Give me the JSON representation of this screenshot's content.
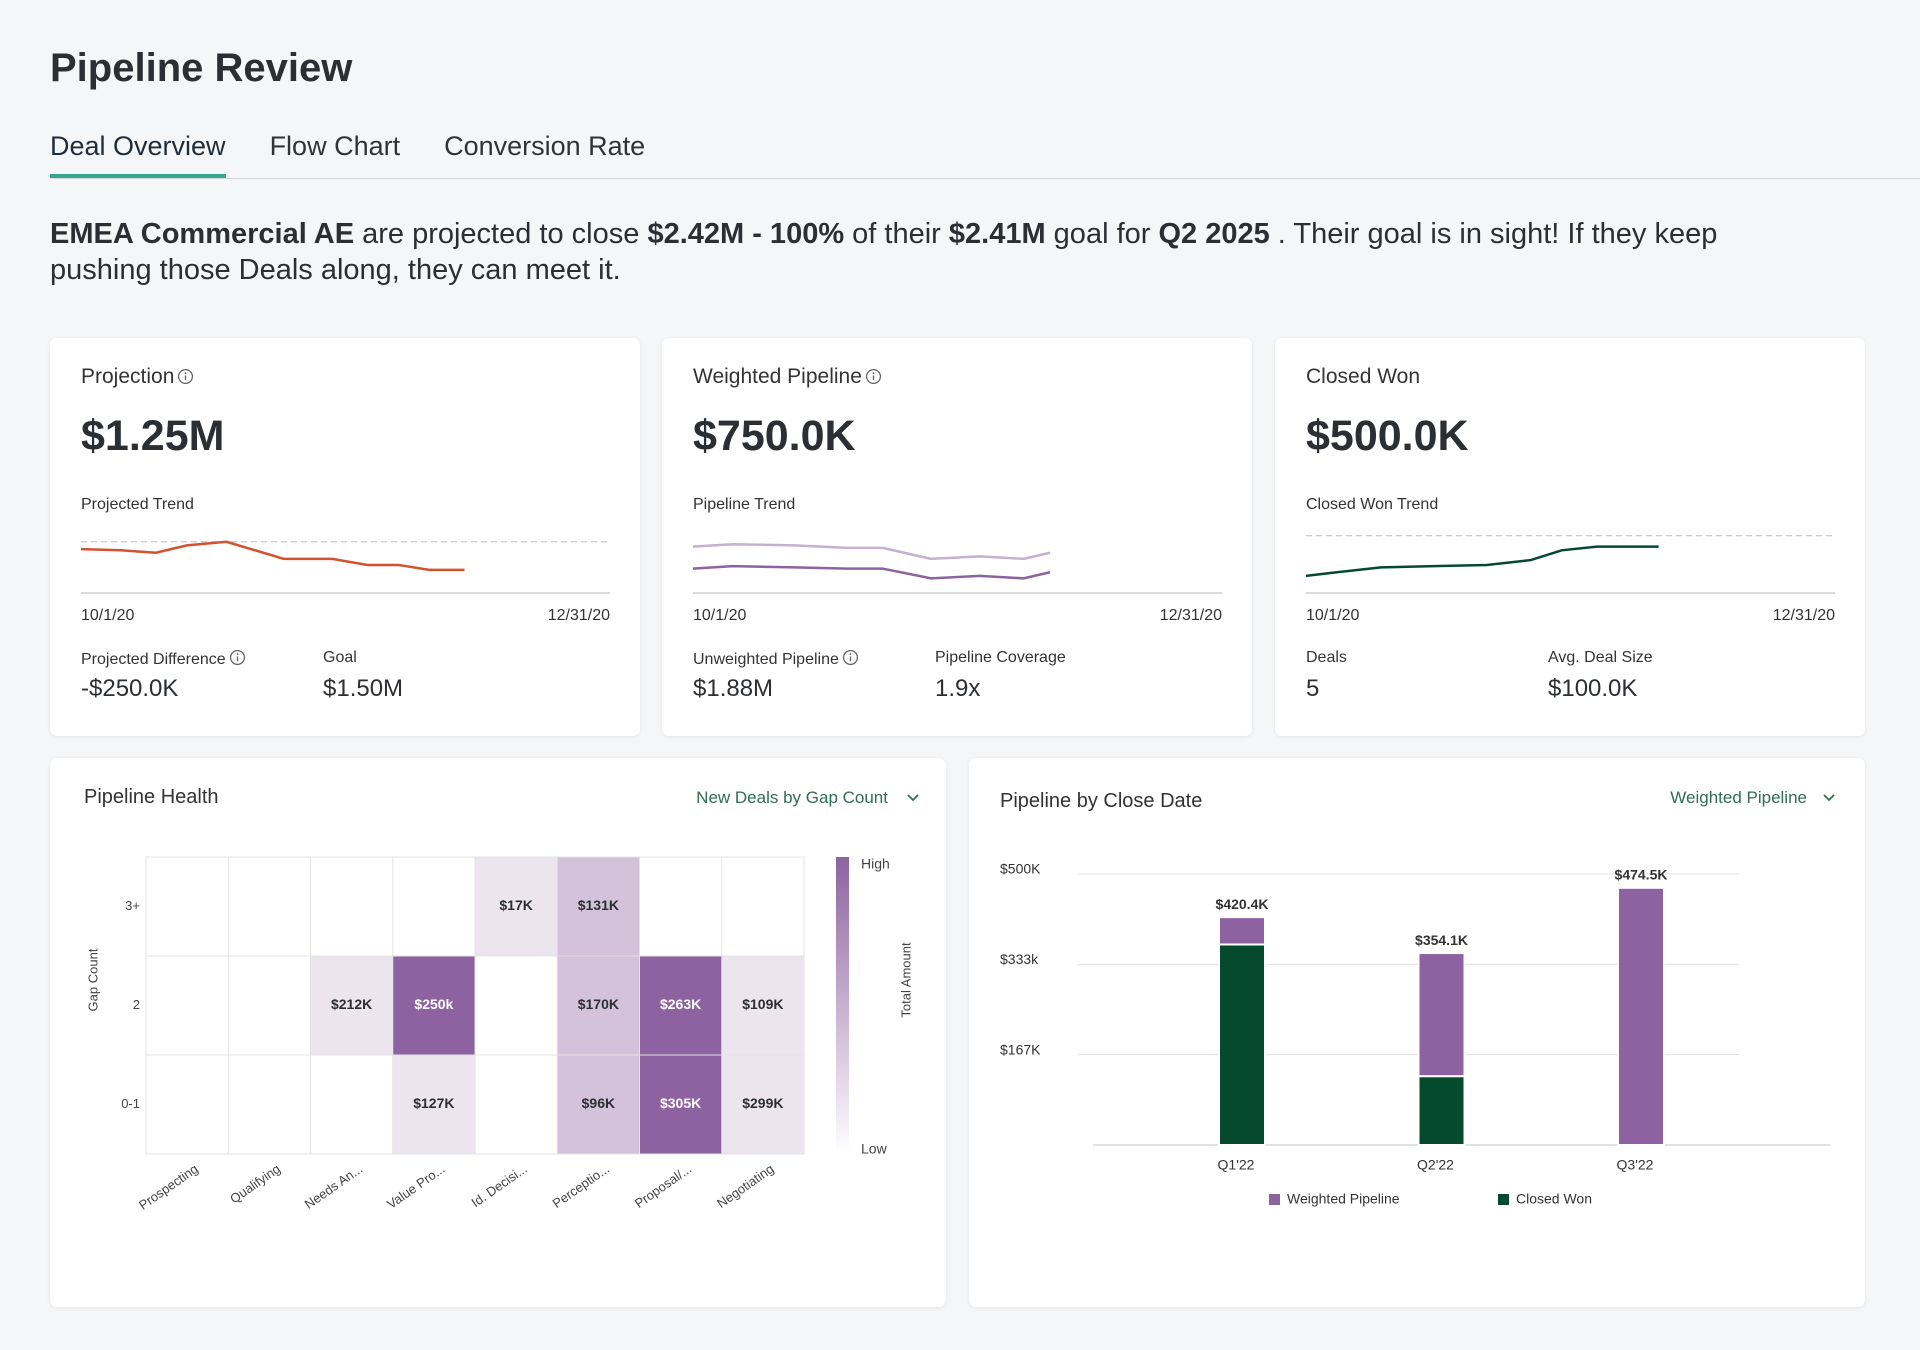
{
  "header": {
    "title": "Pipeline Review"
  },
  "tabs": {
    "items": [
      "Deal Overview",
      "Flow Chart",
      "Conversion Rate"
    ],
    "active": 0
  },
  "summary": [
    {
      "text": "EMEA Commercial AE",
      "bold": true
    },
    {
      "text": " are projected to close "
    },
    {
      "text": "$2.42M - 100%",
      "bold": true
    },
    {
      "text": " of their "
    },
    {
      "text": "$2.41M",
      "bold": true
    },
    {
      "text": " goal for "
    },
    {
      "text": "Q2 2025",
      "bold": true
    },
    {
      "text": " . Their goal is in sight! If they keep pushing those Deals along, they can meet it."
    }
  ],
  "cards": [
    {
      "title": "Projection",
      "info": true,
      "value": "$1.25M",
      "trend_title": "Projected Trend",
      "start_label": "10/1/20",
      "end_label": "12/31/20",
      "chart_data": {
        "type": "line",
        "xlim": [
          0,
          12
        ],
        "ylim": [
          0,
          50
        ],
        "goal": 42,
        "series": [
          {
            "color": "#d3522e",
            "x": [
              0,
              0.9,
              1.7,
              2.4,
              3.3,
              4.6,
              5.7,
              6.5,
              7.2,
              7.9,
              8.7
            ],
            "values": [
              36,
              35,
              33,
              39,
              42,
              28,
              28,
              23,
              23,
              19,
              19
            ]
          }
        ]
      },
      "metrics": [
        {
          "label": "Projected Difference",
          "info": true,
          "value": "-$250.0K"
        },
        {
          "label": "Goal",
          "value": "$1.50M"
        }
      ]
    },
    {
      "title": "Weighted Pipeline",
      "info": true,
      "value": "$750.0K",
      "trend_title": "Pipeline Trend",
      "start_label": "10/1/20",
      "end_label": "12/31/20",
      "chart_data": {
        "type": "line",
        "xlim": [
          0,
          12
        ],
        "ylim": [
          0,
          50
        ],
        "series": [
          {
            "color": "#c5b0cf",
            "x": [
              0,
              0.9,
              2.3,
              3.5,
              4.3,
              5.4,
              6.5,
              7.5,
              8.1
            ],
            "values": [
              38,
              40,
              39,
              37,
              37,
              28,
              30,
              28,
              33
            ]
          },
          {
            "color": "#8e62a0",
            "x": [
              0,
              0.9,
              2.3,
              3.5,
              4.3,
              5.4,
              6.5,
              7.5,
              8.1
            ],
            "values": [
              20,
              22,
              21,
              20,
              20,
              12,
              14,
              12,
              17
            ]
          }
        ]
      },
      "metrics": [
        {
          "label": "Unweighted Pipeline",
          "info": true,
          "value": "$1.88M"
        },
        {
          "label": "Pipeline Coverage",
          "value": "1.9x"
        }
      ]
    },
    {
      "title": "Closed Won",
      "value": "$500.0K",
      "trend_title": "Closed Won Trend",
      "start_label": "10/1/20",
      "end_label": "12/31/20",
      "chart_data": {
        "type": "line",
        "xlim": [
          0,
          12
        ],
        "ylim": [
          0,
          50
        ],
        "goal": 47,
        "series": [
          {
            "color": "#054a2e",
            "x": [
              0,
              0.7,
              1.7,
              2.9,
              4.1,
              5.1,
              5.8,
              6.6,
              8.0
            ],
            "values": [
              14,
              17,
              21,
              22,
              23,
              27,
              35,
              38,
              38
            ]
          }
        ]
      },
      "metrics": [
        {
          "label": "Deals",
          "value": "5"
        },
        {
          "label": "Avg. Deal Size",
          "value": "$100.0K"
        }
      ]
    }
  ],
  "pipeline_health": {
    "title": "Pipeline Health",
    "selector": "New Deals by Gap Count",
    "chart_data": {
      "type": "heatmap",
      "x_categories": [
        "Prospecting",
        "Qualifying",
        "Needs An...",
        "Value Pro...",
        "Id. Decisi...",
        "Perceptio...",
        "Proposal/...",
        "Negotiating"
      ],
      "y_categories": [
        "3+",
        "2",
        "0-1"
      ],
      "values": [
        [
          null,
          null,
          null,
          null,
          17000,
          131000,
          null,
          null
        ],
        [
          null,
          null,
          212000,
          250000,
          null,
          170000,
          263000,
          109000
        ],
        [
          null,
          null,
          null,
          127000,
          null,
          96000,
          305000,
          299000
        ]
      ],
      "value_labels": [
        [
          null,
          null,
          null,
          null,
          "$17K",
          "$131K",
          null,
          null
        ],
        [
          null,
          null,
          "$212K",
          "$250k",
          null,
          "$170K",
          "$263K",
          "$109K"
        ],
        [
          null,
          null,
          null,
          "$127K",
          null,
          "$96K",
          "$305K",
          "$299K"
        ]
      ],
      "colors": [
        [
          null,
          null,
          null,
          null,
          "#ece4ef",
          "#d3c2da",
          null,
          null
        ],
        [
          null,
          null,
          "#ece4ef",
          "#8e62a0",
          null,
          "#d3c2da",
          "#8e62a0",
          "#ece4ef"
        ],
        [
          null,
          null,
          null,
          "#ece4ef",
          null,
          "#d3c2da",
          "#8e62a0",
          "#ece4ef"
        ]
      ],
      "ylabel": "Gap Count",
      "colorbar": {
        "label": "Total Amount",
        "high": "High",
        "low": "Low",
        "colors": [
          "#8e62a0",
          "#ffffff"
        ]
      }
    }
  },
  "pipeline_by_close_date": {
    "title": "Pipeline by Close Date",
    "selector": "Weighted Pipeline",
    "chart_data": {
      "type": "bar",
      "stacked": true,
      "categories": [
        "Q1'22",
        "Q2'22",
        "Q3'22"
      ],
      "series": [
        {
          "name": "Weighted Pipeline",
          "color": "#8e62a0",
          "values": [
            50400,
            227100,
            474500
          ]
        },
        {
          "name": "Closed Won",
          "color": "#054a2e",
          "values": [
            370000,
            127000,
            0
          ]
        }
      ],
      "totals": [
        420400,
        354100,
        474500
      ],
      "total_labels": [
        "$420.4K",
        "$354.1K",
        "$474.5K"
      ],
      "ylim": [
        0,
        500000
      ],
      "yticks": [
        {
          "value": 166667,
          "label": "$167K"
        },
        {
          "value": 333333,
          "label": "$333k"
        },
        {
          "value": 500000,
          "label": "$500K"
        }
      ],
      "grid": true,
      "legend": "bottom"
    }
  }
}
